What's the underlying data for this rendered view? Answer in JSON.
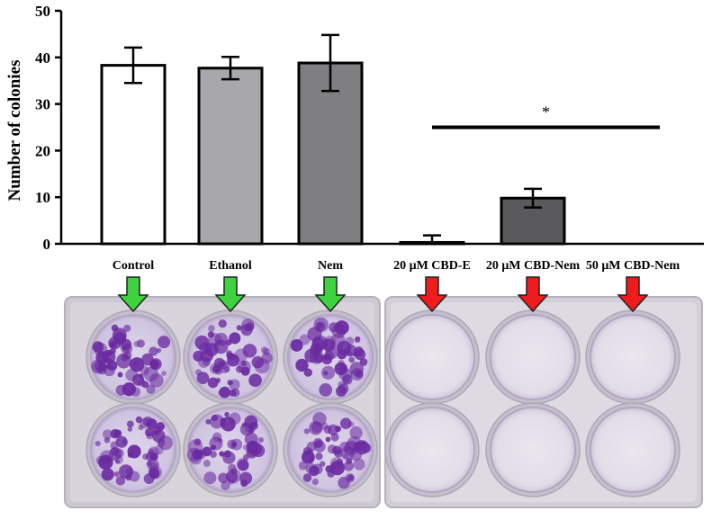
{
  "chart_data": {
    "type": "bar",
    "title": "",
    "xlabel": "",
    "ylabel": "Number of colonies",
    "ylim": [
      0,
      50
    ],
    "yticks": [
      0,
      10,
      20,
      30,
      40,
      50
    ],
    "grid": false,
    "categories": [
      "Control",
      "Ethanol",
      "Nem",
      "20 μM CBD-E",
      "20 μM CBD-Nem",
      "50 μM CBD-Nem"
    ],
    "values": [
      38.3,
      37.7,
      38.8,
      0.3,
      9.8,
      0
    ],
    "errors": [
      3.8,
      2.4,
      6.0,
      1.5,
      2.0,
      0
    ],
    "bar_colors": [
      "#ffffff",
      "#a8a8ac",
      "#7f7f82",
      "#ffffff",
      "#5a5a5d",
      "#ffffff"
    ],
    "annotations": [
      {
        "text": "*",
        "type": "significance-bracket",
        "from_category": 3,
        "to_category": 5,
        "y": 25
      }
    ]
  },
  "photo": {
    "arrows": [
      {
        "category": 0,
        "color": "#3fd23f"
      },
      {
        "category": 1,
        "color": "#3fd23f"
      },
      {
        "category": 2,
        "color": "#3fd23f"
      },
      {
        "category": 3,
        "color": "#ee1c1c"
      },
      {
        "category": 4,
        "color": "#ee1c1c"
      },
      {
        "category": 5,
        "color": "#ee1c1c"
      }
    ],
    "colony_stain_color": "#6a2aa0",
    "plate_color": "#e5e1ec"
  }
}
